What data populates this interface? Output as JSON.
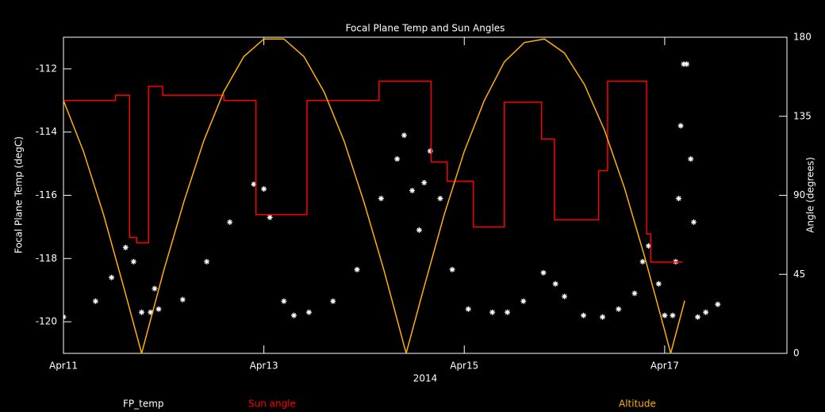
{
  "chart_data": {
    "type": "line",
    "title": "Focal Plane Temp and Sun Angles",
    "xlabel": "2014",
    "ylabel": "Focal Plane Temp (degC)",
    "y2label": "Angle (degrees)",
    "xlim": [
      0,
      7.22
    ],
    "xticks": [
      {
        "value": 0,
        "label": "Apr11"
      },
      {
        "value": 2,
        "label": "Apr13"
      },
      {
        "value": 4,
        "label": "Apr15"
      },
      {
        "value": 6,
        "label": "Apr17"
      }
    ],
    "ylim": [
      -121,
      -111
    ],
    "yticks": [
      -120,
      -118,
      -116,
      -114,
      -112
    ],
    "y2lim": [
      0,
      180
    ],
    "y2ticks": [
      0,
      45,
      90,
      135,
      180
    ],
    "series": [
      {
        "name": "FP_temp",
        "type": "scatter",
        "color": "#ffffff",
        "x": [
          0,
          0.32,
          0.48,
          0.62,
          0.7,
          0.78,
          0.87,
          0.91,
          0.95,
          1.19,
          1.43,
          1.66,
          1.9,
          2.0,
          2.06,
          2.2,
          2.3,
          2.45,
          2.69,
          2.93,
          3.17,
          3.33,
          3.4,
          3.48,
          3.55,
          3.6,
          3.66,
          3.76,
          3.88,
          4.04,
          4.28,
          4.43,
          4.59,
          4.79,
          4.91,
          5.0,
          5.19,
          5.38,
          5.54,
          5.7,
          5.78,
          5.84,
          5.94,
          6.0,
          6.08,
          6.11,
          6.14,
          6.16,
          6.19,
          6.22,
          6.26,
          6.29,
          6.33,
          6.41,
          6.53
        ],
        "values": [
          -119.85,
          -119.35,
          -118.6,
          -117.65,
          -118.1,
          -119.7,
          -119.7,
          -118.95,
          -119.6,
          -119.3,
          -118.1,
          -116.85,
          -115.65,
          -115.8,
          -116.7,
          -119.35,
          -119.8,
          -119.7,
          -119.35,
          -118.35,
          -116.1,
          -114.85,
          -114.1,
          -115.85,
          -117.1,
          -115.6,
          -114.6,
          -116.1,
          -118.35,
          -119.6,
          -119.7,
          -119.7,
          -119.35,
          -118.45,
          -118.8,
          -119.2,
          -119.8,
          -119.85,
          -119.6,
          -119.1,
          -118.1,
          -117.6,
          -118.8,
          -119.8,
          -119.8,
          -118.1,
          -116.1,
          -113.8,
          -111.85,
          -111.85,
          -114.85,
          -116.85,
          -119.85,
          -119.7,
          -119.45
        ]
      },
      {
        "name": "Sun angle",
        "type": "line",
        "axis": "y2",
        "color": "#ff0000",
        "x": [
          0,
          0.52,
          0.52,
          0.66,
          0.66,
          0.73,
          0.73,
          0.85,
          0.85,
          0.99,
          0.99,
          1.6,
          1.6,
          1.92,
          1.92,
          2.43,
          2.43,
          3.15,
          3.15,
          3.67,
          3.67,
          3.83,
          3.83,
          4.09,
          4.09,
          4.4,
          4.4,
          4.77,
          4.77,
          4.9,
          4.9,
          5.34,
          5.34,
          5.43,
          5.43,
          5.82,
          5.82,
          5.86,
          5.86,
          6.18
        ],
        "values": [
          144,
          144,
          147,
          147,
          66,
          66,
          63,
          63,
          152,
          152,
          147,
          147,
          144,
          144,
          79,
          79,
          144,
          144,
          155,
          155,
          109,
          109,
          98,
          98,
          72,
          72,
          143,
          143,
          122,
          122,
          76,
          76,
          104,
          104,
          155,
          155,
          68,
          68,
          52,
          52
        ]
      },
      {
        "name": "Altitude",
        "type": "line",
        "axis": "y2",
        "color": "#ffb000",
        "x": [
          0,
          0.2,
          0.4,
          0.6,
          0.78,
          1.0,
          1.2,
          1.4,
          1.6,
          1.8,
          2.0,
          2.2,
          2.4,
          2.6,
          2.8,
          3.0,
          3.2,
          3.42,
          3.6,
          3.8,
          4.0,
          4.2,
          4.4,
          4.6,
          4.8,
          5.0,
          5.2,
          5.4,
          5.6,
          5.8,
          6.0,
          6.06,
          6.2
        ],
        "values": [
          144,
          115,
          79,
          38,
          0,
          47,
          86,
          121,
          149,
          169,
          179,
          179,
          169,
          149,
          121,
          86,
          47,
          0,
          38,
          79,
          115,
          144,
          166,
          177,
          179,
          171,
          153,
          127,
          94,
          55,
          13,
          0,
          30
        ]
      }
    ]
  }
}
